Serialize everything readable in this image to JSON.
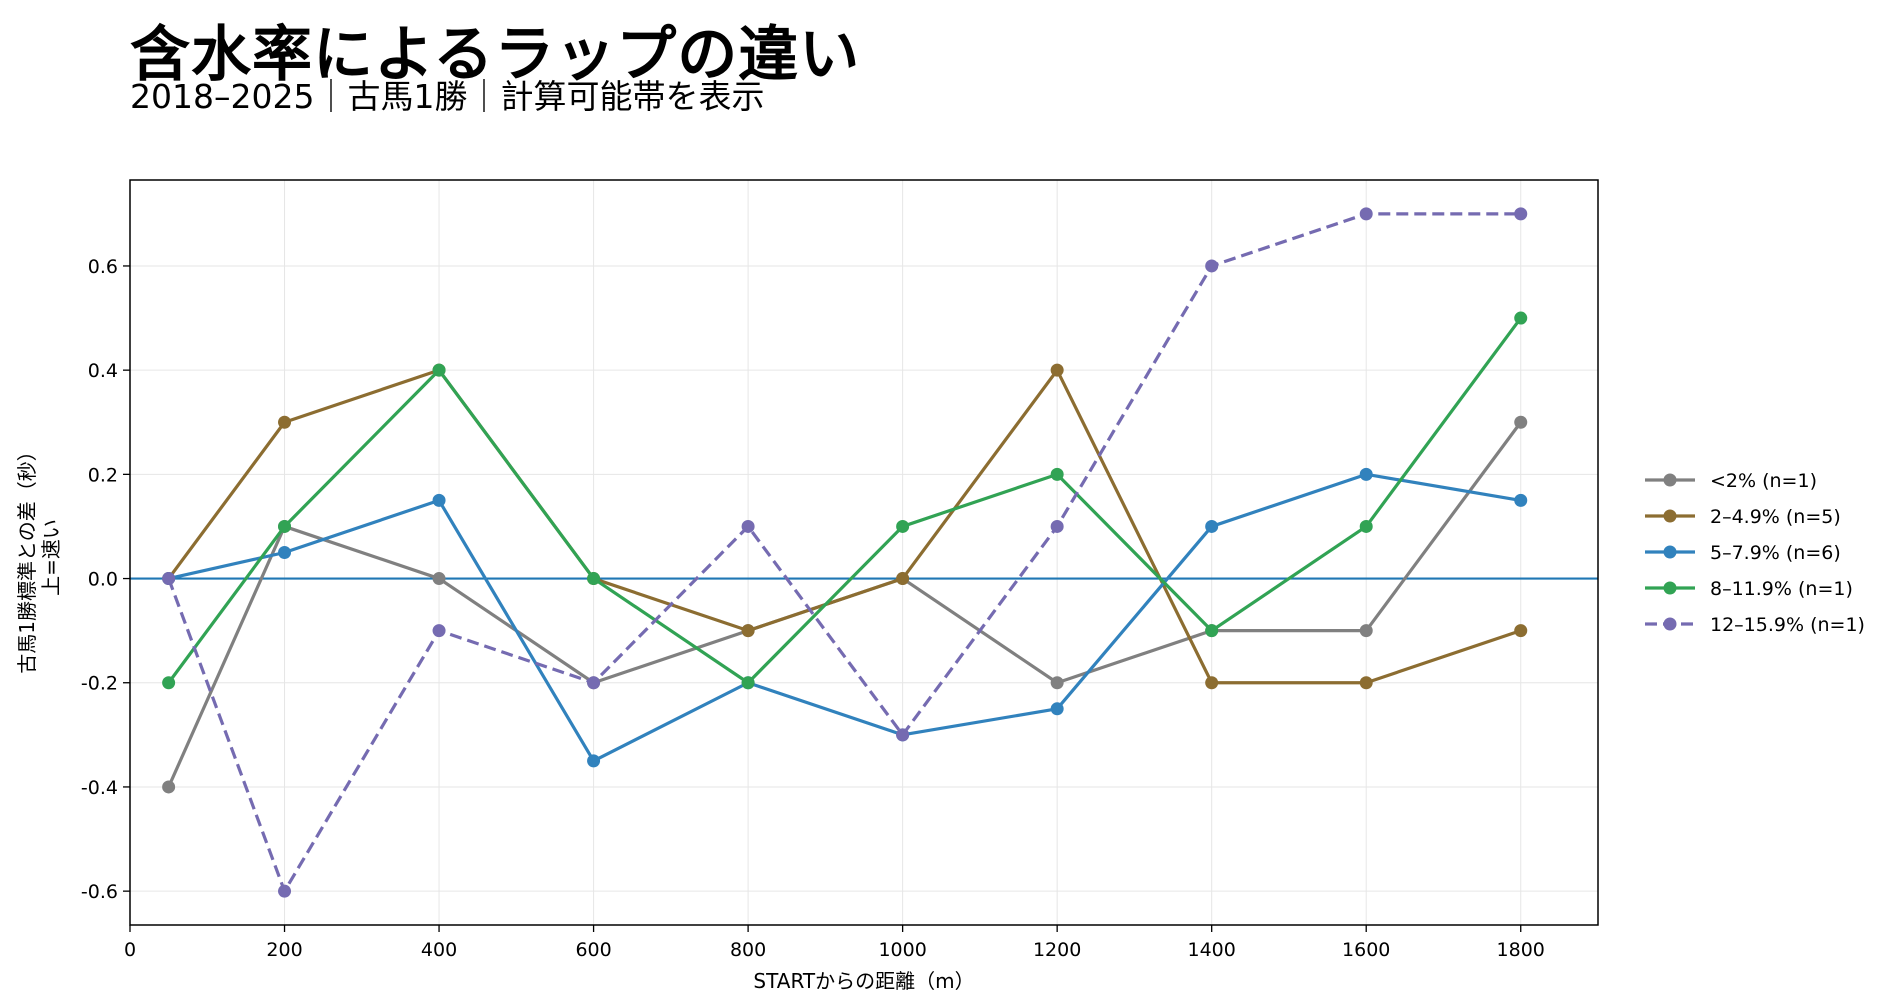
{
  "title": "含水率によるラップの違い",
  "subtitle": "2018–2025｜古馬1勝｜計算可能帯を表示",
  "chart_data": {
    "type": "line",
    "xlabel": "STARTからの距離（m）",
    "ylabel": "古馬1勝標準との差（秒）",
    "ylabel2": "上=速い",
    "xlim": [
      0,
      1900
    ],
    "ylim": [
      -0.665,
      0.765
    ],
    "xticks": [
      0,
      200,
      400,
      600,
      800,
      1000,
      1200,
      1400,
      1600,
      1800
    ],
    "yticks": [
      -0.6,
      -0.4,
      -0.2,
      0.0,
      0.2,
      0.4,
      0.6
    ],
    "ytick_labels": [
      "-0.6",
      "-0.4",
      "-0.2",
      "0.0",
      "0.2",
      "0.4",
      "0.6"
    ],
    "grid": true,
    "legend_position": "right",
    "reference_line": {
      "y": 0.0,
      "color": "#1f77b4"
    },
    "x": [
      50,
      200,
      400,
      600,
      800,
      1000,
      1200,
      1400,
      1600,
      1800
    ],
    "series": [
      {
        "name": "<2%  (n=1)",
        "color": "#808080",
        "dashed": false,
        "values": [
          -0.4,
          0.1,
          0.0,
          -0.2,
          -0.1,
          0.0,
          -0.2,
          -0.1,
          -0.1,
          0.3
        ]
      },
      {
        "name": "2–4.9%  (n=5)",
        "color": "#8c6d31",
        "dashed": false,
        "values": [
          0.0,
          0.3,
          0.4,
          0.0,
          -0.1,
          0.0,
          0.4,
          -0.2,
          -0.2,
          -0.1
        ]
      },
      {
        "name": "5–7.9%  (n=6)",
        "color": "#3182bd",
        "dashed": false,
        "values": [
          0.0,
          0.05,
          0.15,
          -0.35,
          -0.2,
          -0.3,
          -0.25,
          0.1,
          0.2,
          0.15
        ]
      },
      {
        "name": "8–11.9%  (n=1)",
        "color": "#31a354",
        "dashed": false,
        "values": [
          -0.2,
          0.1,
          0.4,
          0.0,
          -0.2,
          0.1,
          0.2,
          -0.1,
          0.1,
          0.5
        ]
      },
      {
        "name": "12–15.9%  (n=1)",
        "color": "#756bb1",
        "dashed": true,
        "values": [
          0.0,
          -0.6,
          -0.1,
          -0.2,
          0.1,
          -0.3,
          0.1,
          0.6,
          0.7,
          0.7
        ]
      }
    ]
  }
}
